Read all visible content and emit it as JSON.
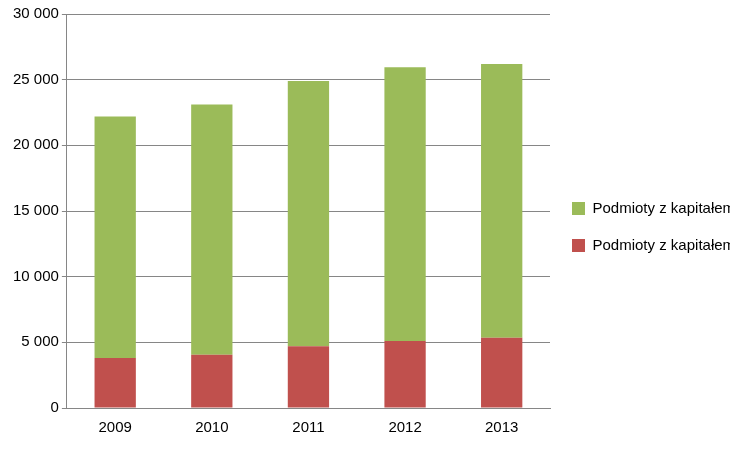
{
  "chart_data": {
    "type": "bar",
    "categories": [
      "2009",
      "2010",
      "2011",
      "2012",
      "2013"
    ],
    "series": [
      {
        "name": "Podmioty z kapitałem spoza UE/EOG",
        "color": "#c0504d",
        "values": [
          3800,
          4050,
          4700,
          5100,
          5350
        ]
      },
      {
        "name": "Podmioty z kapitałem z EU/EOG",
        "color": "#9bbb59",
        "values": [
          18400,
          19050,
          20200,
          20850,
          20850
        ]
      }
    ],
    "stacked": true,
    "ylim": [
      0,
      30000
    ],
    "yticks": [
      0,
      {
        "value": 5000,
        "label": "5 000"
      },
      {
        "value": 10000,
        "label": "10 000"
      },
      {
        "value": 15000,
        "label": "15 000"
      },
      {
        "value": 20000,
        "label": "20 000"
      },
      {
        "value": 25000,
        "label": "25 000"
      },
      {
        "value": 30000,
        "label": "30 000"
      }
    ],
    "grid": true,
    "legend": "right"
  }
}
